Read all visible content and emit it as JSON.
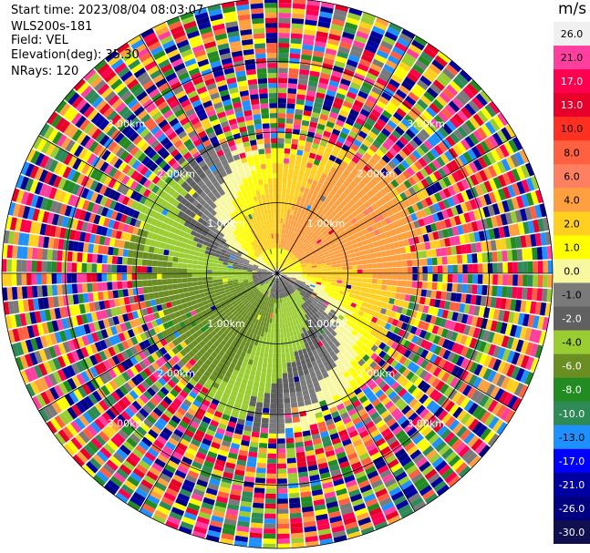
{
  "header": {
    "start_time": "Start time: 2023/08/04 08:03:07",
    "site": "WLS200s-181",
    "field": "Field: VEL",
    "elevation": "Elevation(deg): 35.30",
    "nrays": "NRays: 120"
  },
  "colorbar": {
    "unit": "m/s",
    "ticks": [
      "26.0",
      "21.0",
      "17.0",
      "13.0",
      "10.0",
      "8.0",
      "6.0",
      "4.0",
      "2.0",
      "1.0",
      "0.0",
      "-1.0",
      "-2.0",
      "-4.0",
      "-6.0",
      "-8.0",
      "-10.0",
      "-13.0",
      "-17.0",
      "-21.0",
      "-26.0",
      "-30.0"
    ],
    "colors": [
      "#f0f0f0",
      "#ff3fa0",
      "#ff0050",
      "#e8002a",
      "#ff3020",
      "#ff6040",
      "#ff8060",
      "#ffa040",
      "#ffd020",
      "#ffff00",
      "#f8f8a0",
      "#7a7a7a",
      "#606060",
      "#9acd32",
      "#6b8e23",
      "#228b22",
      "#2e8b57",
      "#1e90ff",
      "#0000ff",
      "#0000a0",
      "#000080",
      "#101050"
    ]
  },
  "chart_data": {
    "type": "ppi",
    "field": "VEL",
    "units": "m/s",
    "elevation_deg": 35.3,
    "n_rays": 120,
    "range_rings_km": [
      1.0,
      2.0,
      3.0
    ],
    "ring_labels": [
      "1.00km",
      "2.00km",
      "3.00km"
    ],
    "grid": true,
    "color_levels": [
      -30.0,
      -26.0,
      -21.0,
      -17.0,
      -13.0,
      -10.0,
      -8.0,
      -6.0,
      -4.0,
      -2.0,
      -1.0,
      0.0,
      1.0,
      2.0,
      4.0,
      6.0,
      8.0,
      10.0,
      13.0,
      17.0,
      21.0,
      26.0
    ]
  }
}
